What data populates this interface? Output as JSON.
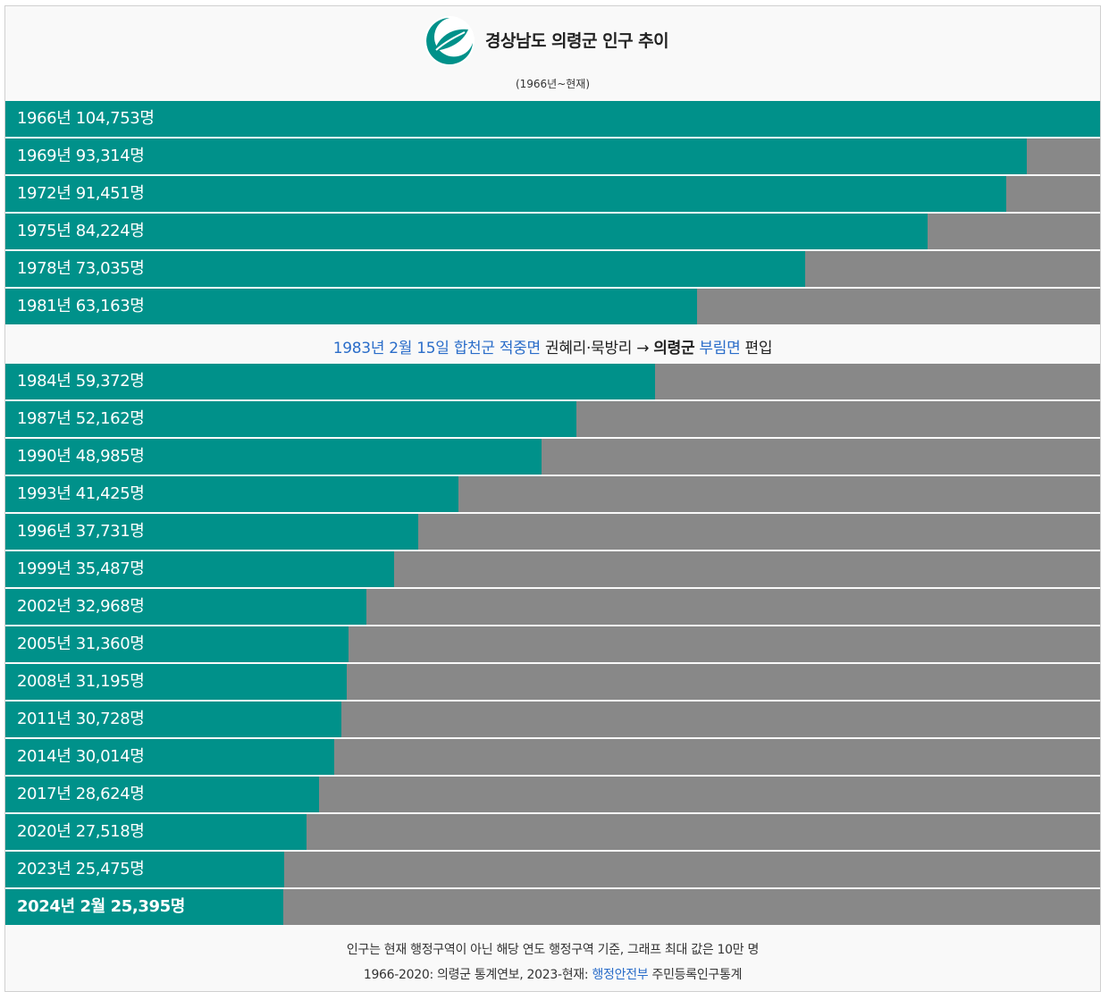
{
  "header": {
    "title": "경상남도 의령군 인구 추이",
    "subtitle": "(1966년~현재)"
  },
  "colors": {
    "bar_fill": "#00918a",
    "bar_track": "#888888",
    "link": "#2a6dc9"
  },
  "chart_data": {
    "type": "bar",
    "orientation": "horizontal",
    "title": "경상남도 의령군 인구 추이",
    "subtitle": "(1966년~현재)",
    "max_value": 100000,
    "unit": "명",
    "categories": [
      "1966년",
      "1969년",
      "1972년",
      "1975년",
      "1978년",
      "1981년",
      "1984년",
      "1987년",
      "1990년",
      "1993년",
      "1996년",
      "1999년",
      "2002년",
      "2005년",
      "2008년",
      "2011년",
      "2014년",
      "2017년",
      "2020년",
      "2023년",
      "2024년 2월"
    ],
    "values": [
      104753,
      93314,
      91451,
      84224,
      73035,
      63163,
      59372,
      52162,
      48985,
      41425,
      37731,
      35487,
      32968,
      31360,
      31195,
      30728,
      30014,
      28624,
      27518,
      25475,
      25395
    ],
    "labels": [
      "1966년 104,753명",
      "1969년 93,314명",
      "1972년 91,451명",
      "1975년 84,224명",
      "1978년 73,035명",
      "1981년 63,163명",
      "1984년 59,372명",
      "1987년 52,162명",
      "1990년 48,985명",
      "1993년 41,425명",
      "1996년 37,731명",
      "1999년 35,487명",
      "2002년 32,968명",
      "2005년 31,360명",
      "2008년 31,195명",
      "2011년 30,728명",
      "2014년 30,014명",
      "2017년 28,624명",
      "2020년 27,518명",
      "2023년 25,475명",
      "2024년 2월 25,395명"
    ],
    "annotation": {
      "after_index": 5,
      "parts": [
        {
          "text": "1983년 2월 15일",
          "style": "link"
        },
        {
          "text": " ",
          "style": "plain"
        },
        {
          "text": "합천군",
          "style": "link"
        },
        {
          "text": " ",
          "style": "plain"
        },
        {
          "text": "적중면",
          "style": "link"
        },
        {
          "text": " 권혜리·묵방리 → ",
          "style": "dark"
        },
        {
          "text": "의령군",
          "style": "bold"
        },
        {
          "text": " ",
          "style": "plain"
        },
        {
          "text": "부림면",
          "style": "link"
        },
        {
          "text": " 편입",
          "style": "dark"
        }
      ]
    }
  },
  "footer": {
    "line1": "인구는 현재 행정구역이 아닌 해당 연도 행정구역 기준, 그래프 최대 값은 10만 명",
    "line2_prefix": "1966-2020: 의령군 통계연보, 2023-현재: ",
    "line2_link": "행정안전부",
    "line2_suffix": " 주민등록인구통계"
  }
}
